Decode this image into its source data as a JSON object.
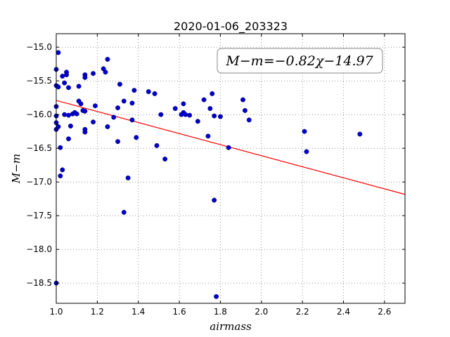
{
  "chart_data": {
    "type": "scatter",
    "title": "2020-01-06_203323",
    "xlabel": "airmass",
    "ylabel": "M−m",
    "xlim": [
      1.0,
      2.7
    ],
    "ylim": [
      -18.8,
      -14.8
    ],
    "y_inverted": true,
    "grid": true,
    "xticks": [
      1.0,
      1.2,
      1.4,
      1.6,
      1.8,
      2.0,
      2.2,
      2.4,
      2.6
    ],
    "xtick_labels": [
      "1.0",
      "1.2",
      "1.4",
      "1.6",
      "1.8",
      "2.0",
      "2.2",
      "2.4",
      "2.6"
    ],
    "yticks": [
      -15.0,
      -15.5,
      -16.0,
      -16.5,
      -17.0,
      -17.5,
      -18.0,
      -18.5
    ],
    "ytick_labels": [
      "−15.0",
      "−15.5",
      "−16.0",
      "−16.5",
      "−17.0",
      "−17.5",
      "−18.0",
      "−18.5"
    ],
    "annotation": "M−m=−0.82χ−14.97",
    "fit": {
      "slope": -0.82,
      "intercept": -14.97,
      "color": "#ff0000"
    },
    "marker_color": "#0000cc",
    "points": [
      [
        1.0,
        -15.33
      ],
      [
        1.0,
        -15.57
      ],
      [
        1.0,
        -15.88
      ],
      [
        1.0,
        -16.02
      ],
      [
        1.0,
        -16.12
      ],
      [
        1.0,
        -16.22
      ],
      [
        1.0,
        -18.5
      ],
      [
        1.01,
        -15.08
      ],
      [
        1.01,
        -15.59
      ],
      [
        1.01,
        -16.18
      ],
      [
        1.02,
        -16.49
      ],
      [
        1.02,
        -16.91
      ],
      [
        1.03,
        -15.43
      ],
      [
        1.03,
        -16.82
      ],
      [
        1.04,
        -15.53
      ],
      [
        1.04,
        -16.0
      ],
      [
        1.05,
        -15.37
      ],
      [
        1.05,
        -15.41
      ],
      [
        1.06,
        -15.6
      ],
      [
        1.06,
        -16.01
      ],
      [
        1.06,
        -16.36
      ],
      [
        1.07,
        -16.17
      ],
      [
        1.08,
        -15.99
      ],
      [
        1.09,
        -15.97
      ],
      [
        1.1,
        -15.99
      ],
      [
        1.11,
        -15.58
      ],
      [
        1.11,
        -15.8
      ],
      [
        1.12,
        -15.84
      ],
      [
        1.13,
        -15.94
      ],
      [
        1.14,
        -15.41
      ],
      [
        1.14,
        -15.45
      ],
      [
        1.14,
        -15.95
      ],
      [
        1.14,
        -16.22
      ],
      [
        1.14,
        -16.26
      ],
      [
        1.18,
        -15.39
      ],
      [
        1.18,
        -16.11
      ],
      [
        1.19,
        -15.87
      ],
      [
        1.23,
        -15.32
      ],
      [
        1.24,
        -15.37
      ],
      [
        1.25,
        -15.18
      ],
      [
        1.25,
        -16.18
      ],
      [
        1.28,
        -16.04
      ],
      [
        1.3,
        -15.9
      ],
      [
        1.3,
        -16.4
      ],
      [
        1.31,
        -15.55
      ],
      [
        1.33,
        -15.8
      ],
      [
        1.33,
        -17.45
      ],
      [
        1.35,
        -16.94
      ],
      [
        1.37,
        -15.83
      ],
      [
        1.37,
        -16.08
      ],
      [
        1.38,
        -15.64
      ],
      [
        1.39,
        -16.34
      ],
      [
        1.45,
        -15.66
      ],
      [
        1.48,
        -15.69
      ],
      [
        1.49,
        -16.46
      ],
      [
        1.51,
        -16.0
      ],
      [
        1.53,
        -16.66
      ],
      [
        1.58,
        -15.91
      ],
      [
        1.61,
        -16.0
      ],
      [
        1.62,
        -15.84
      ],
      [
        1.62,
        -15.97
      ],
      [
        1.63,
        -16.0
      ],
      [
        1.65,
        -16.01
      ],
      [
        1.69,
        -16.1
      ],
      [
        1.72,
        -15.78
      ],
      [
        1.74,
        -16.32
      ],
      [
        1.75,
        -15.91
      ],
      [
        1.76,
        -15.69
      ],
      [
        1.77,
        -16.02
      ],
      [
        1.77,
        -17.27
      ],
      [
        1.78,
        -18.7
      ],
      [
        1.8,
        -16.03
      ],
      [
        1.84,
        -16.49
      ],
      [
        1.91,
        -15.78
      ],
      [
        1.92,
        -15.94
      ],
      [
        1.94,
        -16.08
      ],
      [
        2.21,
        -16.25
      ],
      [
        2.22,
        -16.55
      ],
      [
        2.48,
        -16.29
      ]
    ]
  }
}
